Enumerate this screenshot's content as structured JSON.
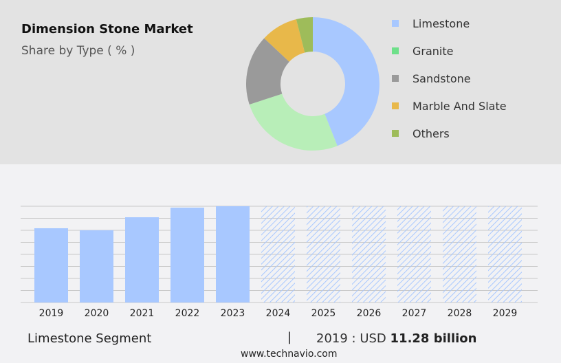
{
  "header": {
    "title": "Dimension Stone Market",
    "subtitle": "Share by Type ( % )"
  },
  "footer": {
    "segment": "Limestone Segment",
    "separator": "|",
    "value_prefix": "2019 : USD",
    "value": "11.28 billion",
    "url": "www.technavio.com"
  },
  "chart_data": [
    {
      "type": "pie",
      "donut": true,
      "legend": "right",
      "slices": [
        {
          "name": "Limestone",
          "value": 44,
          "color": "#a8c8ff"
        },
        {
          "name": "Granite",
          "value": 26,
          "color": "#b8eeb8"
        },
        {
          "name": "Sandstone",
          "value": 17,
          "color": "#9a9a9a"
        },
        {
          "name": "Marble And Slate",
          "value": 9,
          "color": "#e8b84a"
        },
        {
          "name": "Others",
          "value": 4,
          "color": "#9ebc5a"
        }
      ],
      "legend_colors": [
        "#a8c8ff",
        "#6ee08a",
        "#9a9a9a",
        "#e8b84a",
        "#9ebc5a"
      ]
    },
    {
      "type": "bar",
      "categories": [
        "2019",
        "2020",
        "2021",
        "2022",
        "2023",
        "2024",
        "2025",
        "2026",
        "2027",
        "2028",
        "2029"
      ],
      "values": [
        11.28,
        10.97,
        12.95,
        14.41,
        14.62,
        null,
        null,
        null,
        null,
        null,
        null
      ],
      "forecast": [
        "2024",
        "2025",
        "2026",
        "2027",
        "2028",
        "2029"
      ],
      "color": "#a8c8ff",
      "grid": true,
      "ylim": [
        0,
        14.62
      ]
    }
  ]
}
